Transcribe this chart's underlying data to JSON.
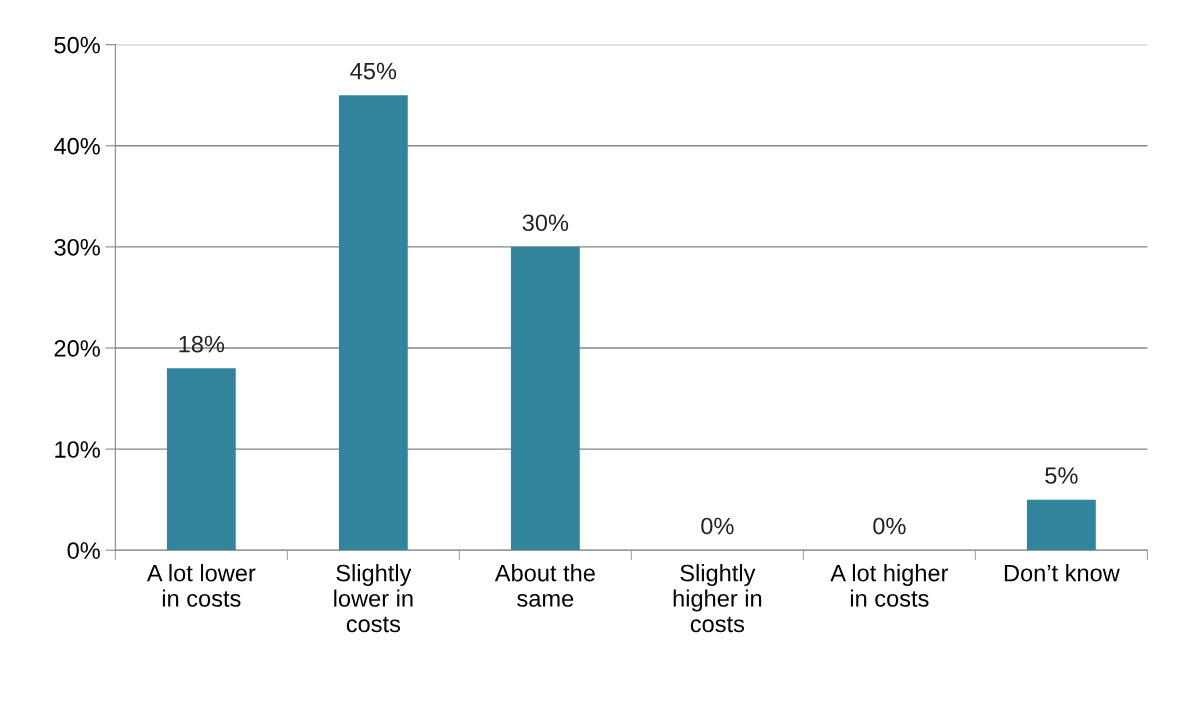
{
  "chart_data": {
    "type": "bar",
    "categories": [
      "A lot lower\nin costs",
      "Slightly\nlower in\ncosts",
      "About the\nsame",
      "Slightly\nhigher in\ncosts",
      "A lot higher\nin costs",
      "Don’t know"
    ],
    "values": [
      18,
      45,
      30,
      0,
      0,
      5
    ],
    "value_labels": [
      "18%",
      "45%",
      "30%",
      "0%",
      "0%",
      "5%"
    ],
    "color": "#31849b",
    "ylim": [
      0,
      50
    ],
    "yticks": [
      {
        "value": 0,
        "label": "0%"
      },
      {
        "value": 10,
        "label": "10%"
      },
      {
        "value": 20,
        "label": "20%"
      },
      {
        "value": 30,
        "label": "30%"
      },
      {
        "value": 40,
        "label": "40%"
      },
      {
        "value": 50,
        "label": "50%"
      }
    ],
    "grid": "y"
  }
}
